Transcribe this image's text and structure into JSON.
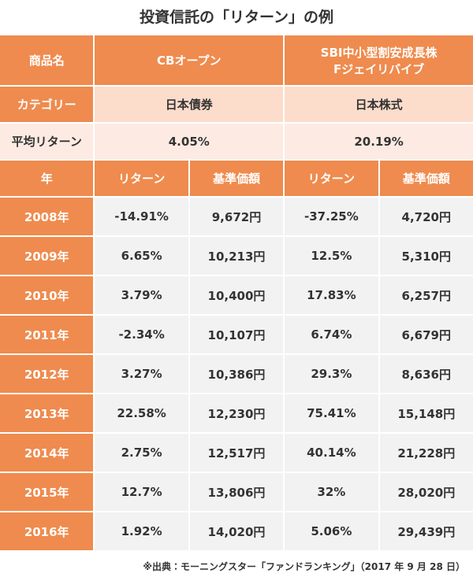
{
  "title": "投資信託の「リターン」の例",
  "table": {
    "product_row": {
      "label": "商品名",
      "funds": [
        [
          "CBオープン"
        ],
        [
          "SBI中小型割安成長株",
          "Fジェイリバイブ"
        ]
      ]
    },
    "category_row": {
      "label": "カテゴリー",
      "values": [
        "日本債券",
        "日本株式"
      ]
    },
    "average_row": {
      "label": "平均リターン",
      "values": [
        "4.05%",
        "20.19%"
      ]
    },
    "column_row": [
      "年",
      "リターン",
      "基準価額",
      "リターン",
      "基準価額"
    ],
    "rows": [
      [
        "2008年",
        "-14.91%",
        "9,672円",
        "-37.25%",
        "4,720円"
      ],
      [
        "2009年",
        "6.65%",
        "10,213円",
        "12.5%",
        "5,310円"
      ],
      [
        "2010年",
        "3.79%",
        "10,400円",
        "17.83%",
        "6,257円"
      ],
      [
        "2011年",
        "-2.34%",
        "10,107円",
        "6.74%",
        "6,679円"
      ],
      [
        "2012年",
        "3.27%",
        "10,386円",
        "29.3%",
        "8,636円"
      ],
      [
        "2013年",
        "22.58%",
        "12,230円",
        "75.41%",
        "15,148円"
      ],
      [
        "2014年",
        "2.75%",
        "12,517円",
        "40.14%",
        "21,228円"
      ],
      [
        "2015年",
        "12.7%",
        "13,806円",
        "32%",
        "28,020円"
      ],
      [
        "2016年",
        "1.92%",
        "14,020円",
        "5.06%",
        "29,439円"
      ]
    ]
  },
  "source": "※出典：モーニングスター「ファンドランキング」（2017 年 9 月 28 日）"
}
